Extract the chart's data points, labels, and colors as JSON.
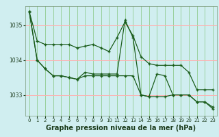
{
  "bg_color": "#d0eef0",
  "grid_color_h": "#ffb0b0",
  "grid_color_v": "#90cc90",
  "line_color": "#1a5c1a",
  "marker": "+",
  "xlabel": "Graphe pression niveau de la mer (hPa)",
  "xlabel_fontsize": 7,
  "ylim": [
    1032.4,
    1035.55
  ],
  "xlim": [
    -0.5,
    23.5
  ],
  "yticks": [
    1033,
    1034,
    1035
  ],
  "xticks": [
    0,
    1,
    2,
    3,
    4,
    5,
    6,
    7,
    8,
    9,
    10,
    11,
    12,
    13,
    14,
    15,
    16,
    17,
    18,
    19,
    20,
    21,
    22,
    23
  ],
  "series1_x": [
    0,
    1,
    2,
    3,
    4,
    5,
    6,
    7,
    8,
    9,
    10,
    11,
    12,
    13,
    14,
    15,
    16,
    17,
    18,
    19,
    20,
    21,
    22,
    23
  ],
  "series1_y": [
    1035.4,
    1034.55,
    1034.45,
    1034.45,
    1034.45,
    1034.45,
    1034.35,
    1034.4,
    1034.45,
    1034.35,
    1034.25,
    1034.65,
    1035.1,
    1034.7,
    1034.1,
    1033.9,
    1033.85,
    1033.85,
    1033.85,
    1033.85,
    1033.65,
    1033.15,
    1033.15,
    1033.15
  ],
  "series2_x": [
    0,
    1,
    2,
    3,
    4,
    5,
    6,
    7,
    8,
    9,
    10,
    11,
    12,
    13,
    14,
    15,
    16,
    17,
    18,
    19,
    20,
    21,
    22,
    23
  ],
  "series2_y": [
    1035.4,
    1034.0,
    1033.75,
    1033.55,
    1033.55,
    1033.5,
    1033.45,
    1033.65,
    1033.6,
    1033.6,
    1033.6,
    1033.6,
    1035.15,
    1034.65,
    1033.0,
    1032.95,
    1033.6,
    1033.55,
    1033.0,
    1033.0,
    1033.0,
    1032.8,
    1032.8,
    1032.65
  ],
  "series3_x": [
    0,
    1,
    2,
    3,
    4,
    5,
    6,
    7,
    8,
    9,
    10,
    11,
    12,
    13,
    14,
    15,
    16,
    17,
    18,
    19,
    20,
    21,
    22,
    23
  ],
  "series3_y": [
    1035.4,
    1034.0,
    1033.75,
    1033.55,
    1033.55,
    1033.5,
    1033.45,
    1033.55,
    1033.55,
    1033.55,
    1033.55,
    1033.55,
    1033.55,
    1033.55,
    1033.0,
    1032.95,
    1032.95,
    1032.95,
    1033.0,
    1033.0,
    1033.0,
    1032.8,
    1032.8,
    1032.6
  ]
}
